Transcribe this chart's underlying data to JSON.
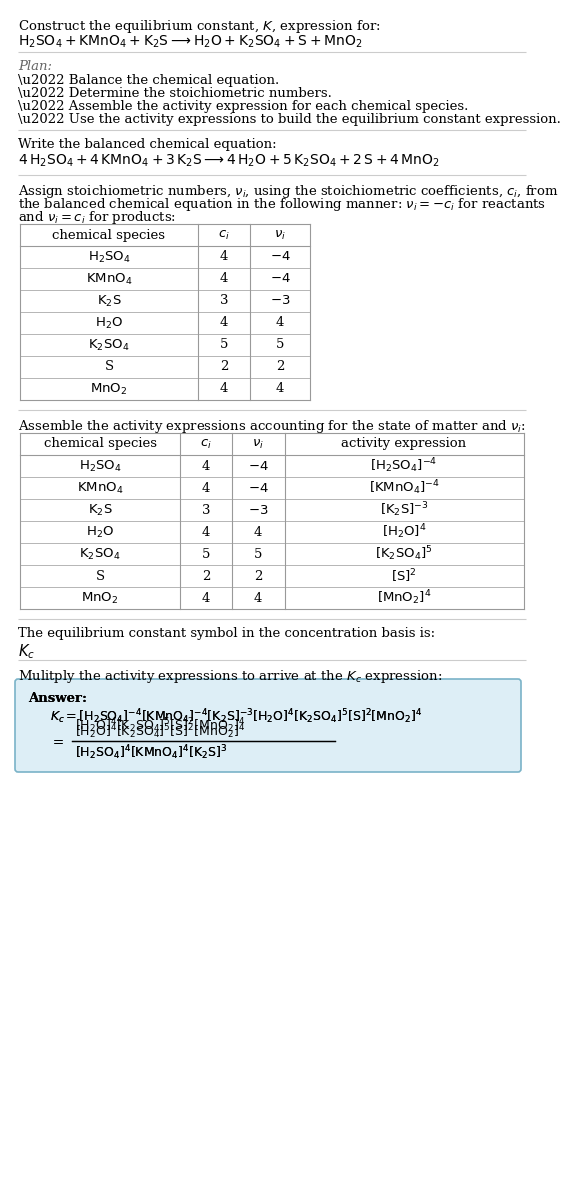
{
  "bg_color": "#ffffff",
  "text_color": "#000000",
  "gray_color": "#666666",
  "table_line_color": "#999999",
  "answer_box_color": "#ddeef6",
  "answer_box_edge_color": "#7ab3c8",
  "font_size": 9.5,
  "title_line1": "Construct the equilibrium constant, $K$, expression for:",
  "title_line2_parts": [
    "$\\mathrm{H_2SO_4}$",
    " + ",
    "$\\mathrm{KMnO_4}$",
    " + ",
    "$\\mathrm{K_2S}$",
    " $\\longrightarrow$ ",
    "$\\mathrm{H_2O}$",
    " + ",
    "$\\mathrm{K_2SO_4}$",
    " + S + ",
    "$\\mathrm{MnO_2}$"
  ],
  "plan_header": "Plan:",
  "plan_items": [
    "\\u2022 Balance the chemical equation.",
    "\\u2022 Determine the stoichiometric numbers.",
    "\\u2022 Assemble the activity expression for each chemical species.",
    "\\u2022 Use the activity expressions to build the equilibrium constant expression."
  ],
  "balanced_header": "Write the balanced chemical equation:",
  "stoich_intro": "Assign stoichiometric numbers, $\\nu_i$, using the stoichiometric coefficients, $c_i$, from the balanced chemical equation in the following manner: $\\nu_i = -c_i$ for reactants and $\\nu_i = c_i$ for products:",
  "table1_col_headers": [
    "chemical species",
    "$c_i$",
    "$\\nu_i$"
  ],
  "table1_rows": [
    [
      "$\\mathrm{H_2SO_4}$",
      "4",
      "$-4$"
    ],
    [
      "$\\mathrm{KMnO_4}$",
      "4",
      "$-4$"
    ],
    [
      "$\\mathrm{K_2S}$",
      "3",
      "$-3$"
    ],
    [
      "$\\mathrm{H_2O}$",
      "4",
      "4"
    ],
    [
      "$\\mathrm{K_2SO_4}$",
      "5",
      "5"
    ],
    [
      "S",
      "2",
      "2"
    ],
    [
      "$\\mathrm{MnO_2}$",
      "4",
      "4"
    ]
  ],
  "activity_intro": "Assemble the activity expressions accounting for the state of matter and $\\nu_i$:",
  "table2_col_headers": [
    "chemical species",
    "$c_i$",
    "$\\nu_i$",
    "activity expression"
  ],
  "table2_rows": [
    [
      "$\\mathrm{H_2SO_4}$",
      "4",
      "$-4$",
      "$[\\mathrm{H_2SO_4}]^{-4}$"
    ],
    [
      "$\\mathrm{KMnO_4}$",
      "4",
      "$-4$",
      "$[\\mathrm{KMnO_4}]^{-4}$"
    ],
    [
      "$\\mathrm{K_2S}$",
      "3",
      "$-3$",
      "$[\\mathrm{K_2S}]^{-3}$"
    ],
    [
      "$\\mathrm{H_2O}$",
      "4",
      "4",
      "$[\\mathrm{H_2O}]^4$"
    ],
    [
      "$\\mathrm{K_2SO_4}$",
      "5",
      "5",
      "$[\\mathrm{K_2SO_4}]^5$"
    ],
    [
      "S",
      "2",
      "2",
      "$[\\mathrm{S}]^2$"
    ],
    [
      "$\\mathrm{MnO_2}$",
      "4",
      "4",
      "$[\\mathrm{MnO_2}]^4$"
    ]
  ],
  "kc_intro": "The equilibrium constant symbol in the concentration basis is:",
  "kc_symbol": "$K_c$",
  "multiply_intro": "Mulitply the activity expressions to arrive at the $K_c$ expression:",
  "answer_label": "Answer:",
  "ans_kc_eq": "$K_c = [\\mathrm{H_2SO_4}]^{-4} [\\mathrm{KMnO_4}]^{-4} [\\mathrm{K_2S}]^{-3} [\\mathrm{H_2O}]^4 [\\mathrm{K_2SO_4}]^5 [\\mathrm{S}]^2 [\\mathrm{MnO_2}]^4$",
  "ans_numerator": "$[\\mathrm{H_2O}]^4 [\\mathrm{K_2SO_4}]^5 [\\mathrm{S}]^2 [\\mathrm{MnO_2}]^4$",
  "ans_denominator": "$[\\mathrm{H_2SO_4}]^4 [\\mathrm{KMnO_4}]^4 [\\mathrm{K_2S}]^3$"
}
